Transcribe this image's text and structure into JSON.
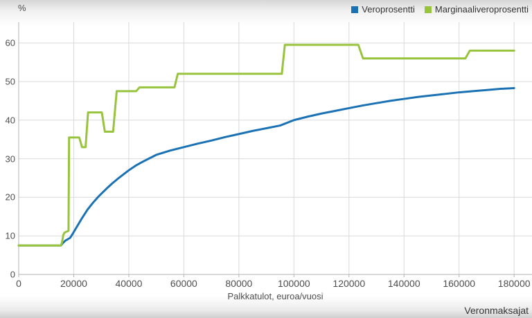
{
  "page": {
    "y_axis_unit": "%",
    "x_axis_title": "Palkkatulot, euroa/vuosi",
    "source": "Veronmaksajat"
  },
  "legend": [
    {
      "label": "Veroprosentti",
      "color": "#1a72b5"
    },
    {
      "label": "Marginaaliveroprosentti",
      "color": "#98c43d"
    }
  ],
  "colors": {
    "grid": "#d9d9d9",
    "axis": "#b3b3b3",
    "tick_text": "#4d4d4d",
    "blue_series": "#1a72b5",
    "green_series": "#98c43d",
    "background_top": "#d6d6d6",
    "background_bottom": "#cfcfcf"
  },
  "chart_data": {
    "type": "line",
    "title": "",
    "xlabel": "Palkkatulot, euroa/vuosi",
    "ylabel": "%",
    "xlim": [
      0,
      186500
    ],
    "ylim": [
      0,
      65.4
    ],
    "x_ticks": [
      0,
      20000,
      40000,
      60000,
      80000,
      100000,
      120000,
      140000,
      160000,
      180000
    ],
    "y_ticks": [
      0,
      10,
      20,
      30,
      40,
      50,
      60
    ],
    "grid": true,
    "legend_position": "top-right",
    "series": [
      {
        "name": "Veroprosentti",
        "color": "#1a72b5",
        "points": [
          [
            0,
            7.5
          ],
          [
            15300,
            7.5
          ],
          [
            16000,
            8.1
          ],
          [
            17000,
            8.8
          ],
          [
            18000,
            9.2
          ],
          [
            18700,
            9.5
          ],
          [
            19500,
            10.4
          ],
          [
            20000,
            11.0
          ],
          [
            21000,
            12.2
          ],
          [
            22000,
            13.4
          ],
          [
            23000,
            14.6
          ],
          [
            24000,
            15.7
          ],
          [
            25000,
            16.8
          ],
          [
            26000,
            17.7
          ],
          [
            27000,
            18.6
          ],
          [
            28000,
            19.4
          ],
          [
            29000,
            20.2
          ],
          [
            30000,
            20.9
          ],
          [
            32000,
            22.3
          ],
          [
            34000,
            23.6
          ],
          [
            36000,
            24.8
          ],
          [
            38000,
            25.9
          ],
          [
            40000,
            27.0
          ],
          [
            42500,
            28.2
          ],
          [
            45000,
            29.2
          ],
          [
            47500,
            30.1
          ],
          [
            50000,
            31.0
          ],
          [
            55000,
            32.1
          ],
          [
            60000,
            33.0
          ],
          [
            65000,
            33.9
          ],
          [
            70000,
            34.7
          ],
          [
            75000,
            35.6
          ],
          [
            80000,
            36.4
          ],
          [
            85000,
            37.2
          ],
          [
            90000,
            37.9
          ],
          [
            95000,
            38.6
          ],
          [
            100000,
            40.0
          ],
          [
            105000,
            40.9
          ],
          [
            110000,
            41.7
          ],
          [
            115000,
            42.4
          ],
          [
            120000,
            43.1
          ],
          [
            125000,
            43.8
          ],
          [
            130000,
            44.4
          ],
          [
            135000,
            45.0
          ],
          [
            140000,
            45.5
          ],
          [
            145000,
            46.0
          ],
          [
            150000,
            46.4
          ],
          [
            155000,
            46.8
          ],
          [
            160000,
            47.2
          ],
          [
            165000,
            47.5
          ],
          [
            170000,
            47.8
          ],
          [
            175000,
            48.1
          ],
          [
            180000,
            48.3
          ]
        ]
      },
      {
        "name": "Marginaaliveroprosentti",
        "color": "#98c43d",
        "points": [
          [
            0,
            7.5
          ],
          [
            15300,
            7.5
          ],
          [
            15700,
            8.2
          ],
          [
            16200,
            10.2
          ],
          [
            16600,
            10.8
          ],
          [
            17100,
            11.0
          ],
          [
            18100,
            11.3
          ],
          [
            18300,
            35.5
          ],
          [
            22000,
            35.5
          ],
          [
            23000,
            33.0
          ],
          [
            24300,
            33.0
          ],
          [
            25200,
            42.0
          ],
          [
            30200,
            42.0
          ],
          [
            31300,
            37.0
          ],
          [
            34300,
            37.0
          ],
          [
            35600,
            47.5
          ],
          [
            42700,
            47.5
          ],
          [
            43900,
            48.5
          ],
          [
            56600,
            48.5
          ],
          [
            57800,
            52.0
          ],
          [
            95600,
            52.0
          ],
          [
            96700,
            59.5
          ],
          [
            123400,
            59.5
          ],
          [
            125100,
            56.0
          ],
          [
            162300,
            56.0
          ],
          [
            163900,
            58.0
          ],
          [
            180000,
            58.0
          ]
        ]
      }
    ]
  }
}
